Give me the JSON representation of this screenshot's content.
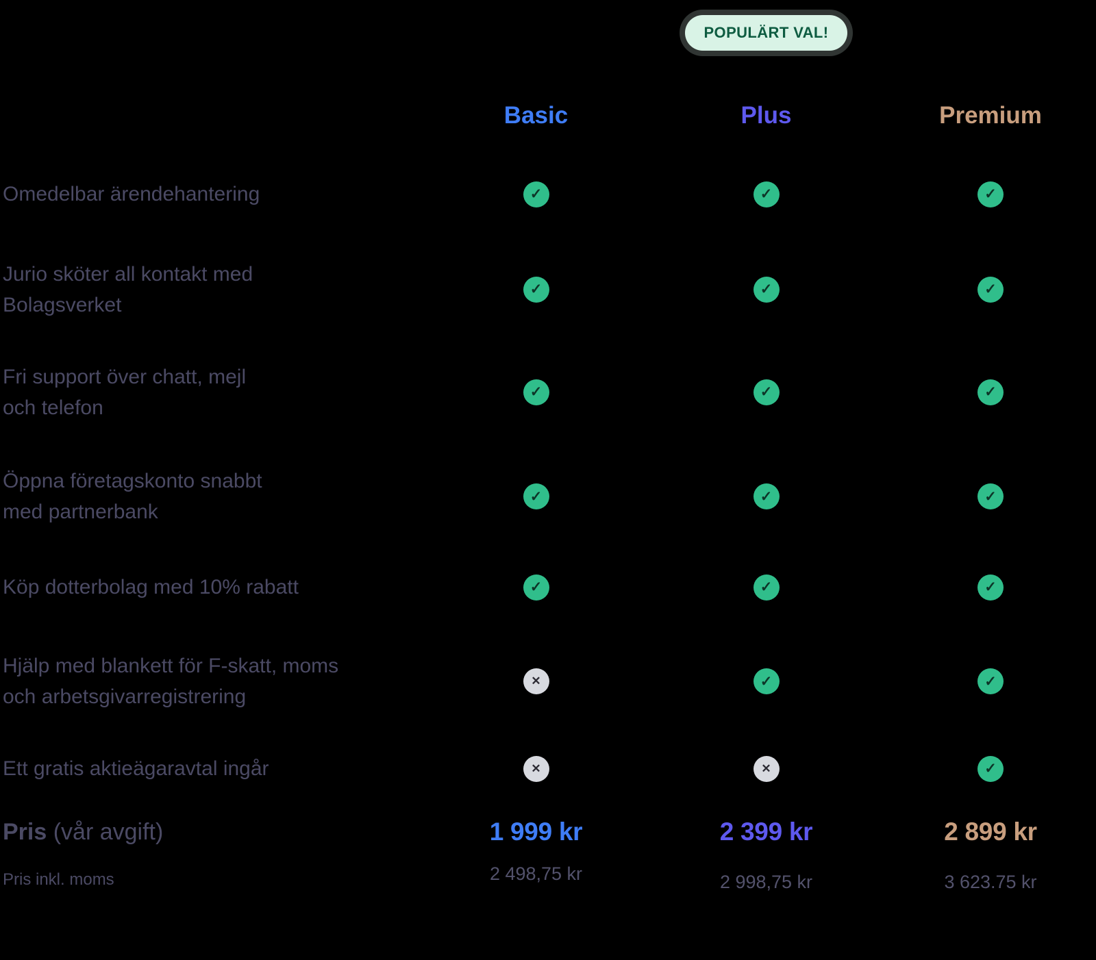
{
  "badge": {
    "label": "POPULÄRT VAL!",
    "bg_color": "#d9f3e6",
    "text_color": "#0e5c41"
  },
  "plans": [
    {
      "name": "Basic",
      "color": "#3f7df6",
      "price": "1 999 kr",
      "price_incl_vat": "2 498,75 kr",
      "highlighted": false
    },
    {
      "name": "Plus",
      "color": "#5e59ee",
      "price": "2 399 kr",
      "price_incl_vat": "2 998,75 kr",
      "highlighted": true
    },
    {
      "name": "Premium",
      "color": "#c89e7e",
      "price": "2 899 kr",
      "price_incl_vat": "3 623.75 kr",
      "highlighted": false
    }
  ],
  "features": [
    {
      "label": "Omedelbar ärendehantering",
      "availability": [
        "yes",
        "yes",
        "yes"
      ]
    },
    {
      "label": "Jurio sköter all kontakt med\nBolagsverket",
      "availability": [
        "yes",
        "yes",
        "yes"
      ]
    },
    {
      "label": "Fri support över chatt, mejl\noch telefon",
      "availability": [
        "yes",
        "yes",
        "yes"
      ]
    },
    {
      "label": "Öppna företagskonto snabbt\nmed partnerbank",
      "availability": [
        "yes",
        "yes",
        "yes"
      ]
    },
    {
      "label": "Köp dotterbolag med 10% rabatt",
      "availability": [
        "yes",
        "yes",
        "yes"
      ]
    },
    {
      "label": "Hjälp med blankett för F-skatt, moms\noch arbetsgivarregistrering",
      "availability": [
        "no",
        "yes",
        "yes"
      ]
    },
    {
      "label": "Ett gratis aktieägaravtal ingår",
      "availability": [
        "no",
        "no",
        "yes"
      ]
    }
  ],
  "price_row": {
    "label_bold": "Pris",
    "label_rest": " (vår avgift)",
    "vat_note": "Pris inkl. moms"
  },
  "icons": {
    "check_glyph": "✓",
    "cross_glyph": "✕",
    "check_bg": "#30be8b",
    "cross_bg": "#d8dae0"
  },
  "colors": {
    "background": "#000000",
    "feature_text": "#4b4a64",
    "subprice_text": "#53526c"
  }
}
